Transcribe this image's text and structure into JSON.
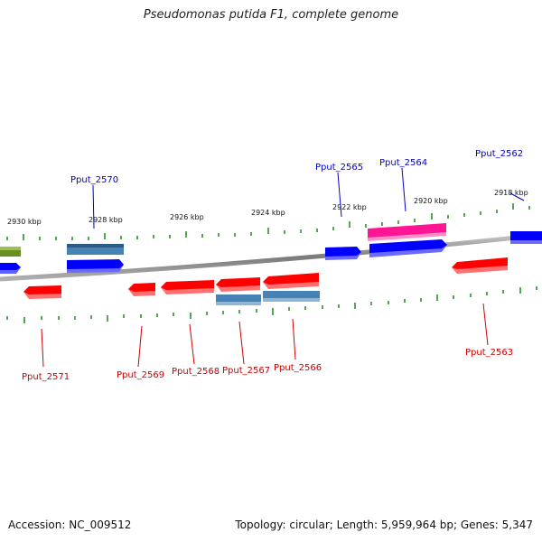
{
  "title": "Pseudomonas putida F1, complete genome",
  "footer": {
    "accession": "Accession: NC_009512",
    "stats": "Topology: circular; Length: 5,959,964 bp; Genes: 5,347"
  },
  "colors": {
    "backbone": "#8a8a8a",
    "tick": "#1a8a1a",
    "plus_label": "#0000cc",
    "minus_label": "#cc0000",
    "gene_red": "#ff0000",
    "gene_blue": "#0000ff",
    "gene_steel": "#4682b4",
    "gene_pink": "#ff1493",
    "gene_olive": "#6b8e23"
  },
  "kbp_labels": [
    "2930 kbp",
    "2928 kbp",
    "2926 kbp",
    "2924 kbp",
    "2922 kbp",
    "2920 kbp",
    "2918 kbp"
  ],
  "gene_labels": {
    "top": [
      "Pput_2570",
      "Pput_2565",
      "Pput_2564",
      "Pput_2562"
    ],
    "bottom": [
      "Pput_2571",
      "Pput_2569",
      "Pput_2568",
      "Pput_2567",
      "Pput_2566",
      "Pput_2563"
    ]
  }
}
